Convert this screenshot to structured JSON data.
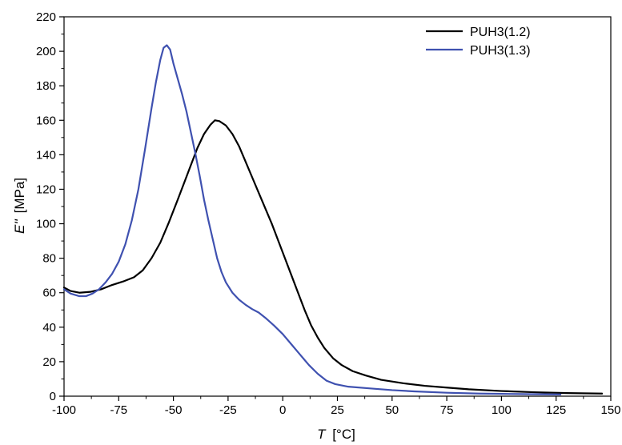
{
  "chart_data": {
    "type": "line",
    "xlabel_symbol": "T",
    "xlabel_unit": "[°C]",
    "ylabel_symbol": "E''",
    "ylabel_unit": "[MPa]",
    "xlim": [
      -100,
      150
    ],
    "ylim": [
      0,
      220
    ],
    "x_ticks": [
      -100,
      -75,
      -50,
      -25,
      0,
      25,
      50,
      75,
      100,
      125,
      150
    ],
    "y_ticks": [
      0,
      20,
      40,
      60,
      80,
      100,
      120,
      140,
      160,
      180,
      200,
      220
    ],
    "grid": false,
    "legend_position": "top-right",
    "series": [
      {
        "name": "PUH3(1.2)",
        "color": "#000000",
        "points": [
          [
            -100,
            63
          ],
          [
            -97,
            61
          ],
          [
            -93,
            60
          ],
          [
            -88,
            60.5
          ],
          [
            -83,
            62
          ],
          [
            -78,
            64.5
          ],
          [
            -73,
            66.5
          ],
          [
            -68,
            69
          ],
          [
            -64,
            73
          ],
          [
            -60,
            80
          ],
          [
            -56,
            89
          ],
          [
            -52,
            101
          ],
          [
            -48,
            114
          ],
          [
            -45,
            124
          ],
          [
            -42,
            134
          ],
          [
            -39,
            144
          ],
          [
            -36,
            152
          ],
          [
            -33,
            157.5
          ],
          [
            -31,
            160
          ],
          [
            -29,
            159.5
          ],
          [
            -26,
            157
          ],
          [
            -23,
            152
          ],
          [
            -20,
            145
          ],
          [
            -17,
            136
          ],
          [
            -14,
            127
          ],
          [
            -11,
            118
          ],
          [
            -8,
            109
          ],
          [
            -5,
            100
          ],
          [
            -2,
            90
          ],
          [
            1,
            80
          ],
          [
            4,
            70
          ],
          [
            7,
            60
          ],
          [
            10,
            50
          ],
          [
            13,
            41
          ],
          [
            16,
            34
          ],
          [
            19,
            28
          ],
          [
            23,
            22
          ],
          [
            27,
            18
          ],
          [
            32,
            14.5
          ],
          [
            38,
            12
          ],
          [
            45,
            9.5
          ],
          [
            55,
            7.5
          ],
          [
            65,
            6
          ],
          [
            75,
            5
          ],
          [
            85,
            4
          ],
          [
            100,
            3
          ],
          [
            115,
            2.3
          ],
          [
            130,
            1.8
          ],
          [
            146,
            1.5
          ]
        ]
      },
      {
        "name": "PUH3(1.3)",
        "color": "#3f51b0",
        "points": [
          [
            -100,
            62
          ],
          [
            -97,
            59.5
          ],
          [
            -93,
            58
          ],
          [
            -90,
            58
          ],
          [
            -87,
            59.5
          ],
          [
            -84,
            62
          ],
          [
            -81,
            66
          ],
          [
            -78,
            71
          ],
          [
            -75,
            78
          ],
          [
            -72,
            88
          ],
          [
            -69,
            102
          ],
          [
            -66,
            120
          ],
          [
            -63,
            143
          ],
          [
            -60,
            167
          ],
          [
            -58,
            182
          ],
          [
            -56,
            195
          ],
          [
            -54.5,
            202
          ],
          [
            -53,
            203.5
          ],
          [
            -51.5,
            201
          ],
          [
            -50,
            193
          ],
          [
            -48,
            184
          ],
          [
            -46,
            175
          ],
          [
            -44,
            165
          ],
          [
            -42,
            153
          ],
          [
            -40,
            141
          ],
          [
            -38,
            128
          ],
          [
            -36,
            114
          ],
          [
            -34,
            102
          ],
          [
            -32,
            91
          ],
          [
            -30,
            80
          ],
          [
            -28,
            72
          ],
          [
            -26,
            66
          ],
          [
            -23,
            60
          ],
          [
            -20,
            56
          ],
          [
            -17,
            53
          ],
          [
            -14,
            50.5
          ],
          [
            -11,
            48.5
          ],
          [
            -8,
            45.5
          ],
          [
            -4,
            41
          ],
          [
            0,
            36
          ],
          [
            4,
            30
          ],
          [
            8,
            24
          ],
          [
            12,
            18
          ],
          [
            16,
            13
          ],
          [
            20,
            9
          ],
          [
            24,
            7
          ],
          [
            30,
            5.5
          ],
          [
            40,
            4.5
          ],
          [
            50,
            3.5
          ],
          [
            60,
            2.8
          ],
          [
            75,
            2
          ],
          [
            90,
            1.5
          ],
          [
            110,
            1.2
          ],
          [
            127,
            1
          ]
        ]
      }
    ]
  }
}
